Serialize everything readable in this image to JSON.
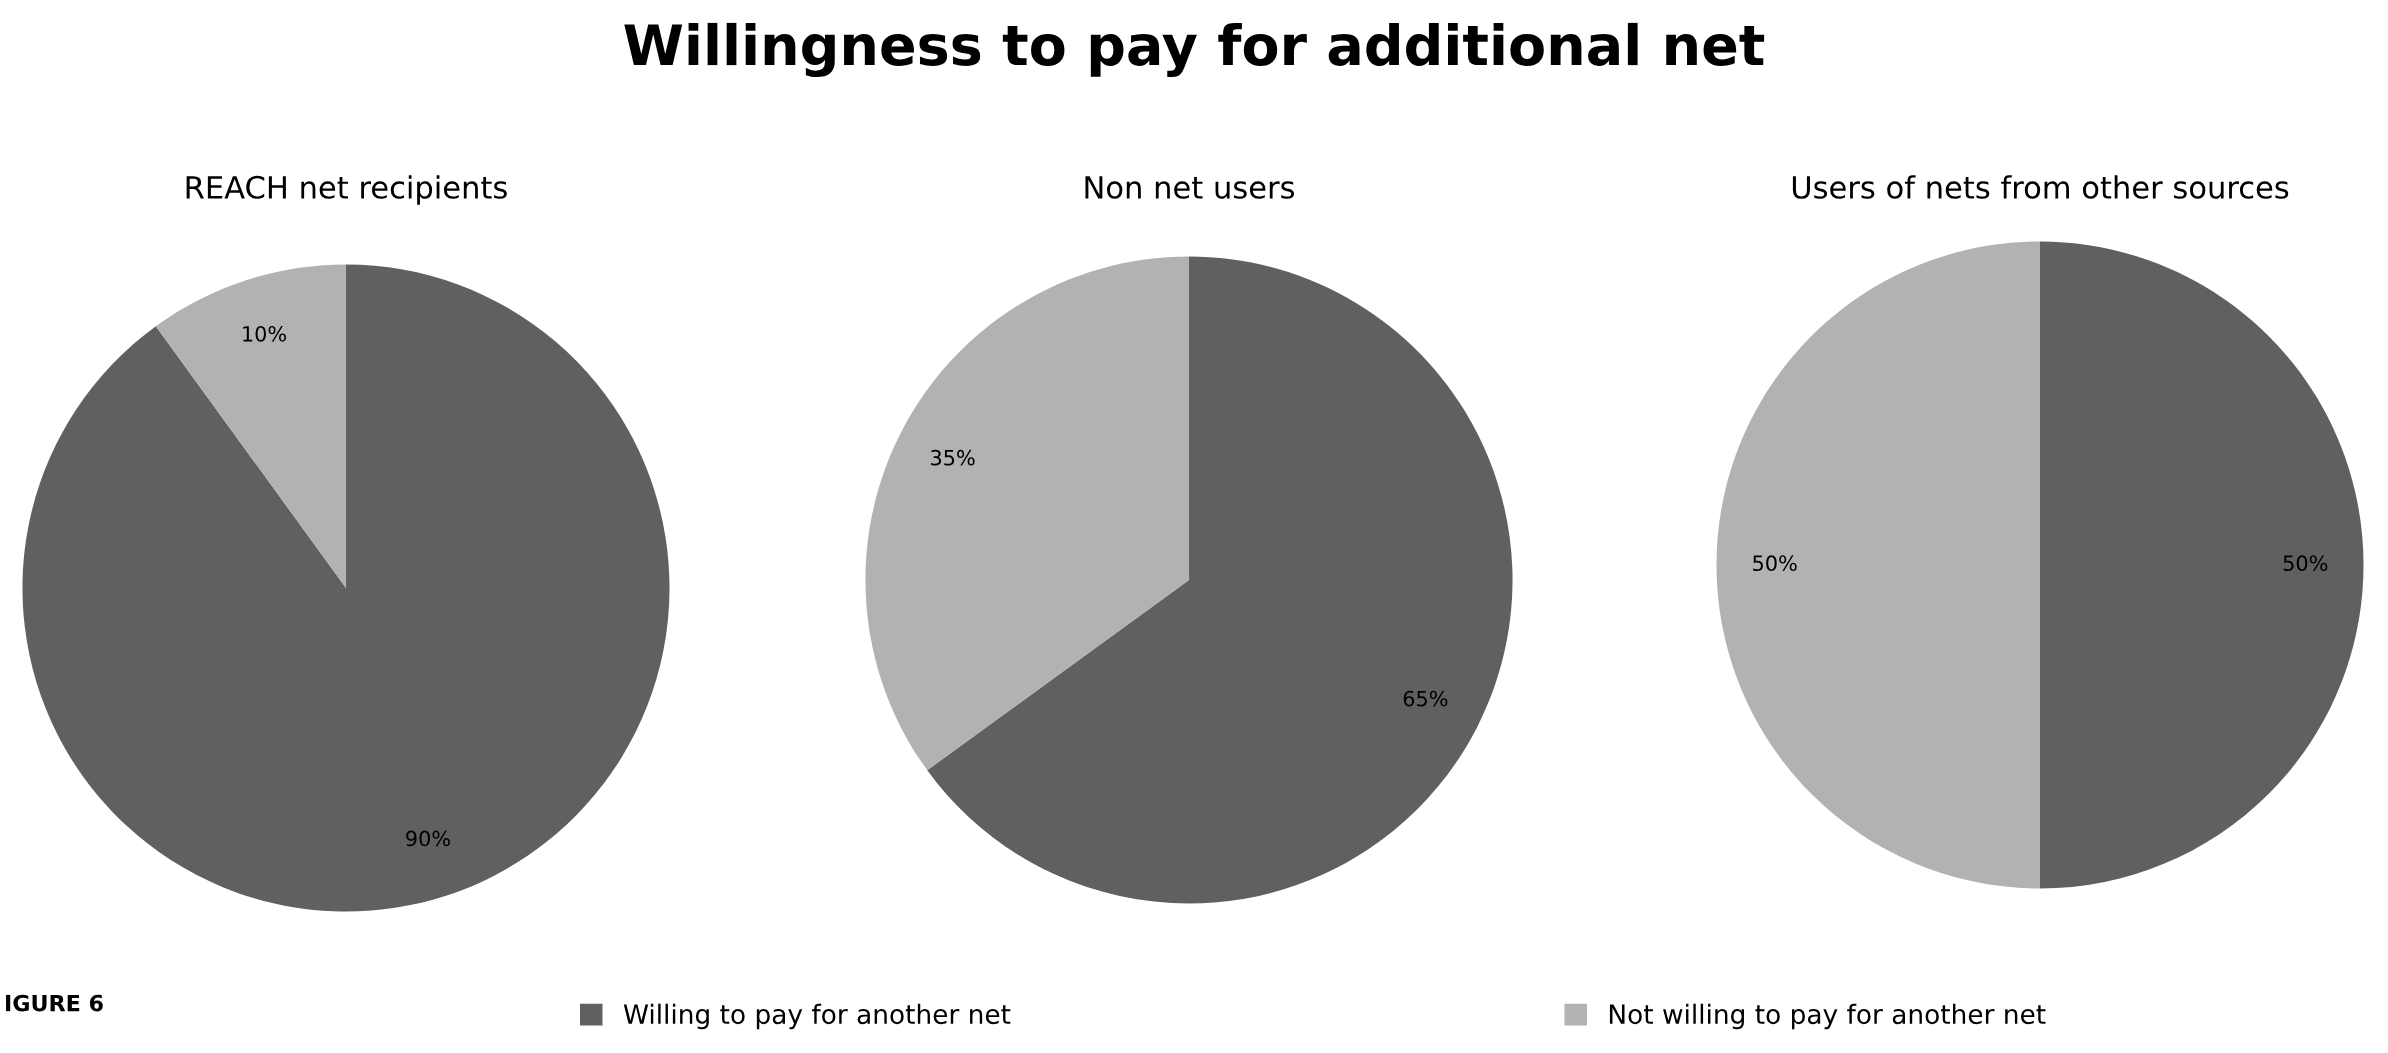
{
  "chart_data": [
    {
      "type": "pie",
      "title": "REACH net recipients",
      "categories": [
        "Willing to pay for another net",
        "Not willing to pay for another net"
      ],
      "values": [
        90,
        10
      ],
      "value_labels": [
        "90%",
        "10%"
      ],
      "colors": [
        "#606060",
        "#b2b2b2"
      ],
      "legend": "bottom",
      "annotations": [
        "Willingness to pay for additional net",
        "IGURE 6"
      ]
    },
    {
      "type": "pie",
      "title": "Non net users",
      "categories": [
        null,
        null
      ],
      "values": [
        65,
        35
      ],
      "value_labels": [
        "65%",
        "35%"
      ],
      "colors": [
        "#606060",
        "#b2b2b2"
      ]
    },
    {
      "type": "pie",
      "title": "Users of nets from other sources",
      "categories": [
        null,
        null
      ],
      "values": [
        50,
        50
      ],
      "value_labels": [
        "50%",
        "50%"
      ],
      "colors": [
        "#606060",
        "#b2b2b2"
      ]
    }
  ]
}
